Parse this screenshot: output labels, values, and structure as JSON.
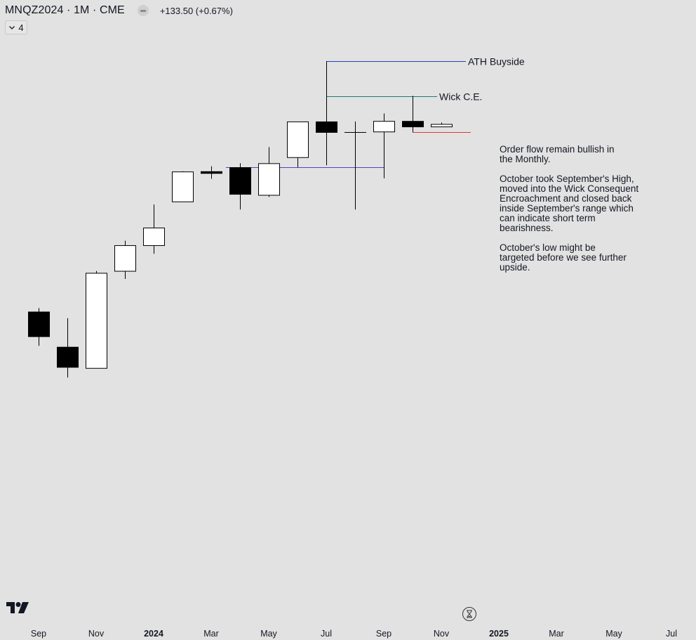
{
  "header": {
    "symbol": "MNQZ2024 · 1M · CME",
    "change": "+133.50 (+0.67%)",
    "indicators_count": "4"
  },
  "icons": {
    "market_status": "market-closed-icon",
    "collapse": "chevron-down-icon",
    "logo": "tradingview-logo-icon",
    "replay": "hourglass-icon"
  },
  "chart_data": {
    "type": "candlestick",
    "candles": [
      {
        "t": "2023-09",
        "o": 15580,
        "h": 15650,
        "l": 14900,
        "c": 15090
      },
      {
        "t": "2023-10",
        "o": 14880,
        "h": 15450,
        "l": 14270,
        "c": 14480
      },
      {
        "t": "2023-11",
        "o": 14460,
        "h": 16390,
        "l": 14460,
        "c": 16350
      },
      {
        "t": "2023-12",
        "o": 16390,
        "h": 16990,
        "l": 16230,
        "c": 16900
      },
      {
        "t": "2024-01",
        "o": 16900,
        "h": 17710,
        "l": 16730,
        "c": 17250
      },
      {
        "t": "2024-02",
        "o": 17770,
        "h": 18370,
        "l": 17770,
        "c": 18365
      },
      {
        "t": "2024-03",
        "o": 18370,
        "h": 18470,
        "l": 18220,
        "c": 18335
      },
      {
        "t": "2024-04",
        "o": 18450,
        "h": 18530,
        "l": 17610,
        "c": 17920
      },
      {
        "t": "2024-05",
        "o": 17900,
        "h": 18850,
        "l": 17860,
        "c": 18530
      },
      {
        "t": "2024-06",
        "o": 18650,
        "h": 19310,
        "l": 18450,
        "c": 19360
      },
      {
        "t": "2024-07",
        "o": 19360,
        "h": 20560,
        "l": 18490,
        "c": 19150
      },
      {
        "t": "2024-08",
        "o": 19150,
        "h": 19360,
        "l": 17610,
        "c": 19150
      },
      {
        "t": "2024-09",
        "o": 19160,
        "h": 19520,
        "l": 18230,
        "c": 19370
      },
      {
        "t": "2024-10",
        "o": 19370,
        "h": 19870,
        "l": 19150,
        "c": 19260
      },
      {
        "t": "2024-11",
        "o": 19260,
        "h": 19340,
        "l": 19250,
        "c": 19310
      }
    ],
    "levels": [
      {
        "label": "ATH Buyside",
        "price": 20560,
        "from": "2024-07",
        "to": "2024-12",
        "color": "#2440b8"
      },
      {
        "label": "Wick C.E.",
        "price": 19860,
        "from": "2024-07",
        "to": "2024-11",
        "color": "#1c7a6e"
      },
      {
        "label": "",
        "price": 19150,
        "from": "2024-10",
        "to": "2024-12",
        "color": "#d63b3b"
      },
      {
        "label": "",
        "price": 18450,
        "from": "2024-04",
        "to": "2024-09",
        "color": "#5b3fc4"
      }
    ],
    "annotations": [
      "Order flow remain bullish in the Monthly.",
      "October took September's High, moved into the Wick Consequent Encroachment and closed back inside September's range which can indicate short term bearishness.",
      "October's low might be targeted before we see further upside."
    ],
    "x_axis_labels": [
      "Sep",
      "Nov",
      "2024",
      "Mar",
      "May",
      "Jul",
      "Sep",
      "Nov",
      "2025",
      "Mar",
      "May",
      "Jul"
    ],
    "x_axis_label_months": [
      "2023-09",
      "2023-11",
      "2024-01",
      "2024-03",
      "2024-05",
      "2024-07",
      "2024-09",
      "2024-11",
      "2025-01",
      "2025-03",
      "2025-05",
      "2025-07"
    ],
    "bold_labels": [
      "2024",
      "2025"
    ],
    "colors": {
      "up_body": "#ffffff",
      "down_body": "#000000",
      "wick": "#000000",
      "background": "#e2e2e2"
    }
  }
}
